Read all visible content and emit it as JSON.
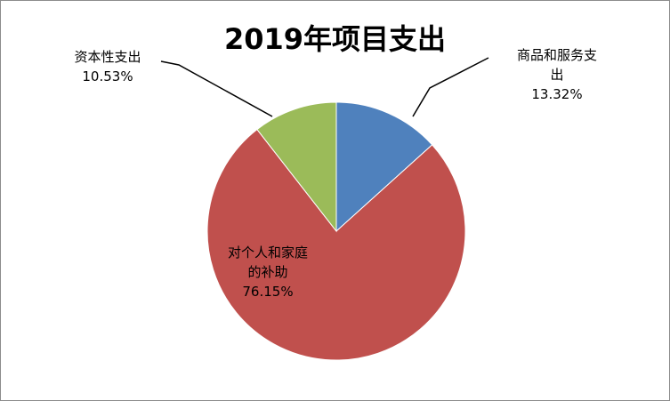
{
  "chart_data": {
    "type": "pie",
    "title": "2019年项目支出",
    "slices": [
      {
        "label_lines": [
          "商品和服务支",
          "出"
        ],
        "value_label": "13.32%",
        "value": 13.32,
        "color": "#4f81bd"
      },
      {
        "label_lines": [
          "对个人和家庭",
          "的补助"
        ],
        "value_label": "76.15%",
        "value": 76.15,
        "color": "#c0504d"
      },
      {
        "label_lines": [
          "资本性支出"
        ],
        "value_label": "10.53%",
        "value": 10.53,
        "color": "#9bbb59"
      }
    ]
  }
}
